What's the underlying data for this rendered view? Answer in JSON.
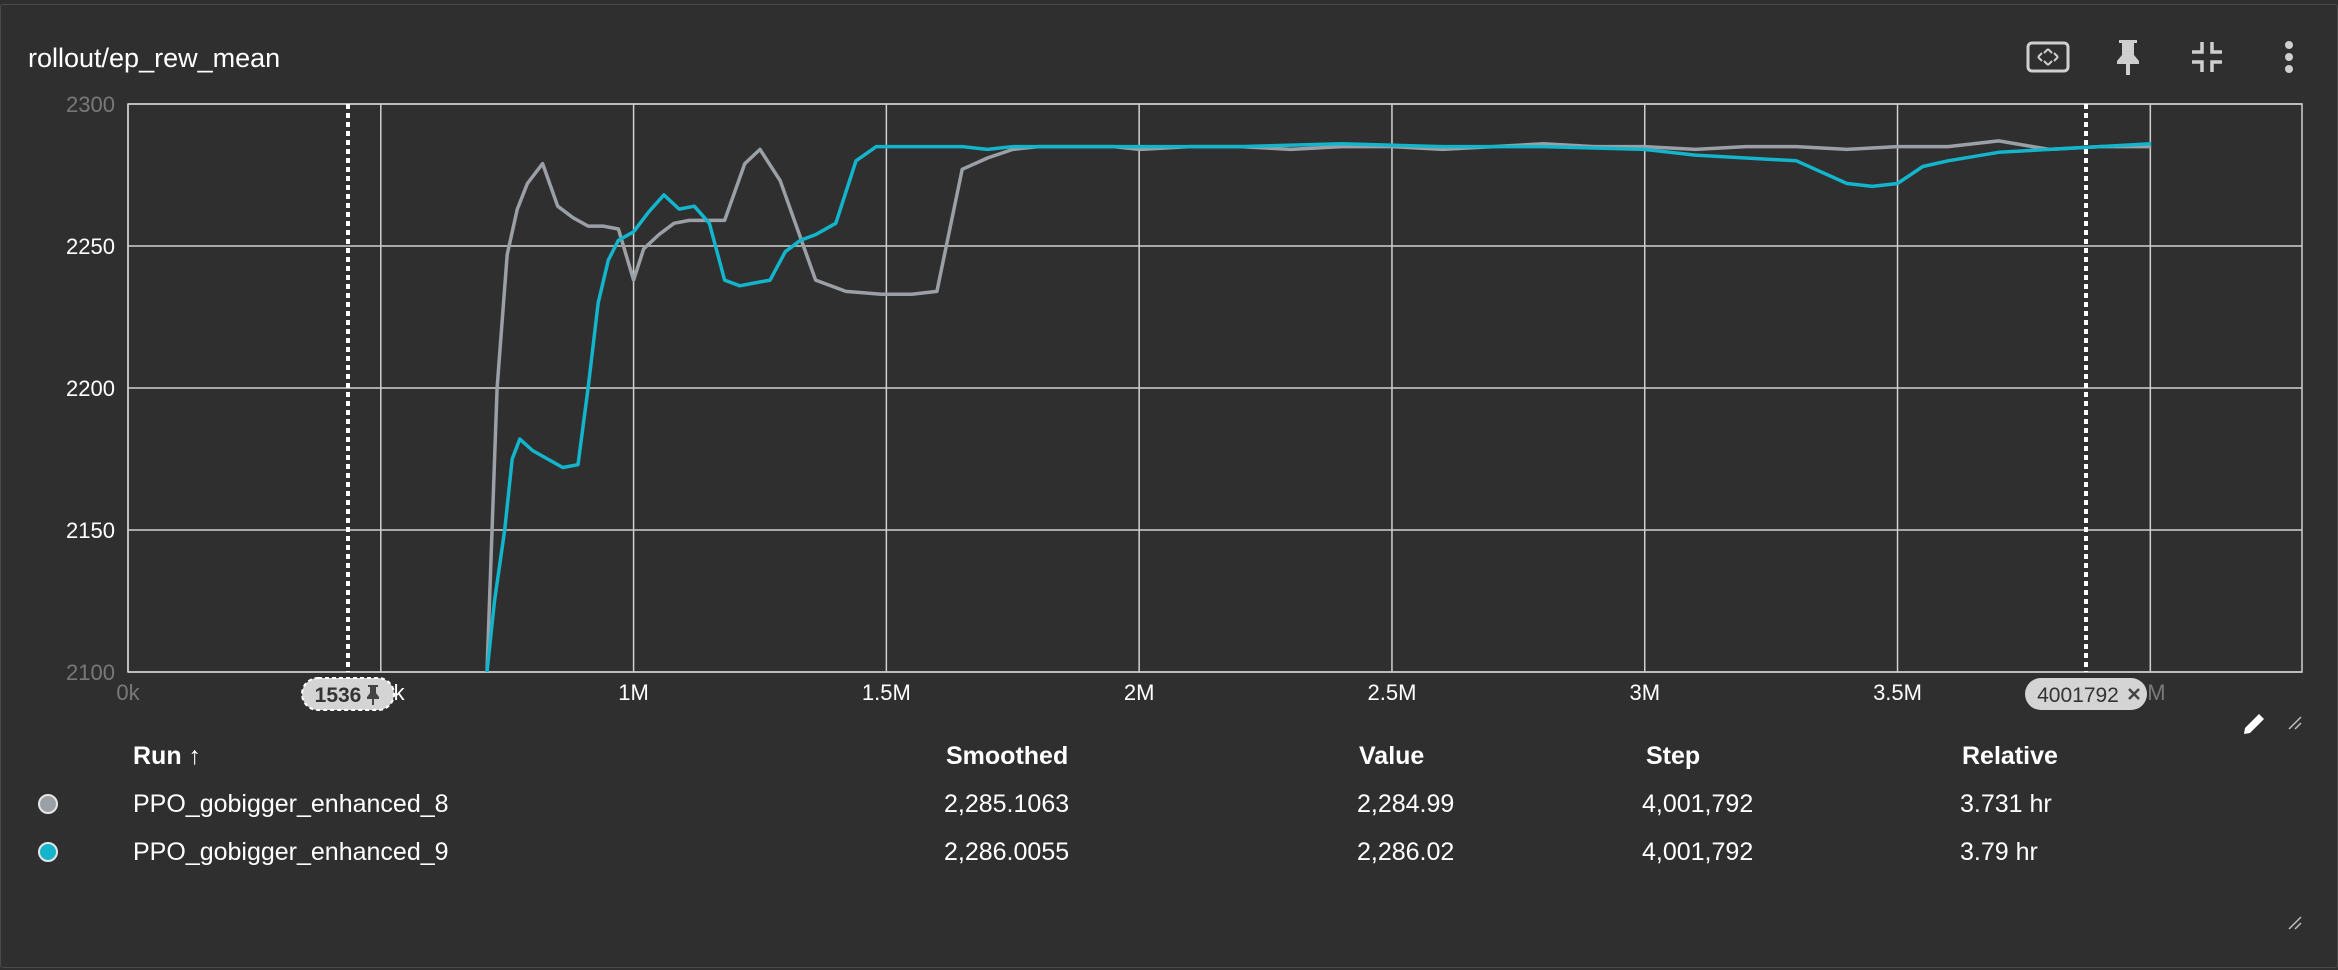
{
  "card": {
    "title": "rollout/ep_rew_mean"
  },
  "toolbar": {
    "icons": [
      "fit-domain-icon",
      "pin-icon",
      "collapse-icon",
      "more-vert-icon"
    ]
  },
  "colors": {
    "background": "#2f2f2f",
    "grid": "#d0d0d0",
    "run_8": "#9aa0a6",
    "run_9": "#12b5cb",
    "cursor_line": "#ffffff",
    "chip_bg": "#d4d4d4"
  },
  "chart_data": {
    "type": "line",
    "title": "rollout/ep_rew_mean",
    "xlabel": "",
    "ylabel": "",
    "xlim": [
      0,
      4001792
    ],
    "ylim": [
      2100,
      2300
    ],
    "x_ticks": [
      0,
      500000,
      1000000,
      1500000,
      2000000,
      2500000,
      3000000,
      3500000,
      4000000
    ],
    "x_tick_labels": [
      "0k",
      "500k",
      "1M",
      "1.5M",
      "2M",
      "2.5M",
      "3M",
      "3.5M",
      "4M"
    ],
    "y_ticks": [
      2100,
      2150,
      2200,
      2250,
      2300
    ],
    "y_tick_labels": [
      "2100",
      "2150",
      "2200",
      "2250",
      "2300"
    ],
    "grid": true,
    "markers": [
      {
        "x": 1536,
        "label": "1536",
        "kind": "pinned"
      },
      {
        "x": 4001792,
        "label": "4001792",
        "kind": "closable"
      }
    ],
    "series": [
      {
        "name": "PPO_gobigger_enhanced_8",
        "color": "#9aa0a6",
        "x": [
          710000,
          730000,
          750000,
          770000,
          790000,
          820000,
          850000,
          880000,
          910000,
          940000,
          970000,
          1000000,
          1020000,
          1050000,
          1080000,
          1110000,
          1140000,
          1180000,
          1220000,
          1250000,
          1290000,
          1360000,
          1420000,
          1490000,
          1550000,
          1600000,
          1650000,
          1700000,
          1750000,
          1800000,
          1850000,
          1900000,
          1950000,
          2000000,
          2100000,
          2200000,
          2300000,
          2400000,
          2500000,
          2600000,
          2700000,
          2800000,
          2900000,
          3000000,
          3100000,
          3200000,
          3300000,
          3400000,
          3500000,
          3600000,
          3700000,
          3800000,
          3900000,
          4001792
        ],
        "y": [
          2100,
          2200,
          2247,
          2263,
          2272,
          2279,
          2264,
          2260,
          2257,
          2257,
          2256,
          2238,
          2249,
          2254,
          2258,
          2259,
          2259,
          2259,
          2279,
          2284,
          2273,
          2238,
          2234,
          2233,
          2233,
          2234,
          2277,
          2281,
          2284,
          2285,
          2285,
          2285,
          2285,
          2284,
          2285,
          2285,
          2284,
          2285,
          2285,
          2284,
          2285,
          2286,
          2285,
          2285,
          2284,
          2285,
          2285,
          2284,
          2285,
          2285,
          2287,
          2284,
          2285,
          2285
        ]
      },
      {
        "name": "PPO_gobigger_enhanced_9",
        "color": "#12b5cb",
        "x": [
          710000,
          725000,
          745000,
          760000,
          775000,
          800000,
          830000,
          860000,
          890000,
          910000,
          930000,
          950000,
          970000,
          1000000,
          1030000,
          1060000,
          1090000,
          1120000,
          1150000,
          1180000,
          1210000,
          1240000,
          1270000,
          1300000,
          1330000,
          1360000,
          1400000,
          1440000,
          1480000,
          1500000,
          1530000,
          1560000,
          1600000,
          1650000,
          1700000,
          1750000,
          1800000,
          1900000,
          2000000,
          2200000,
          2400000,
          2600000,
          2800000,
          3000000,
          3100000,
          3200000,
          3300000,
          3350000,
          3400000,
          3450000,
          3500000,
          3550000,
          3600000,
          3700000,
          3800000,
          3900000,
          4001792
        ],
        "y": [
          2100,
          2125,
          2150,
          2175,
          2182,
          2178,
          2175,
          2172,
          2173,
          2200,
          2230,
          2245,
          2252,
          2255,
          2262,
          2268,
          2263,
          2264,
          2258,
          2238,
          2236,
          2237,
          2238,
          2248,
          2252,
          2254,
          2258,
          2280,
          2285,
          2285,
          2285,
          2285,
          2285,
          2285,
          2284,
          2285,
          2285,
          2285,
          2285,
          2285,
          2286,
          2285,
          2285,
          2284,
          2282,
          2281,
          2280,
          2276,
          2272,
          2271,
          2272,
          2278,
          2280,
          2283,
          2284,
          2285,
          2286
        ]
      }
    ]
  },
  "table": {
    "headers": {
      "run": "Run ↑",
      "smoothed": "Smoothed",
      "value": "Value",
      "step": "Step",
      "relative": "Relative"
    },
    "rows": [
      {
        "run": "PPO_gobigger_enhanced_8",
        "color": "#9aa0a6",
        "smoothed": "2,285.1063",
        "value": "2,284.99",
        "step": "4,001,792",
        "relative": "3.731 hr"
      },
      {
        "run": "PPO_gobigger_enhanced_9",
        "color": "#12b5cb",
        "smoothed": "2,286.0055",
        "value": "2,286.02",
        "step": "4,001,792",
        "relative": "3.79 hr"
      }
    ]
  }
}
